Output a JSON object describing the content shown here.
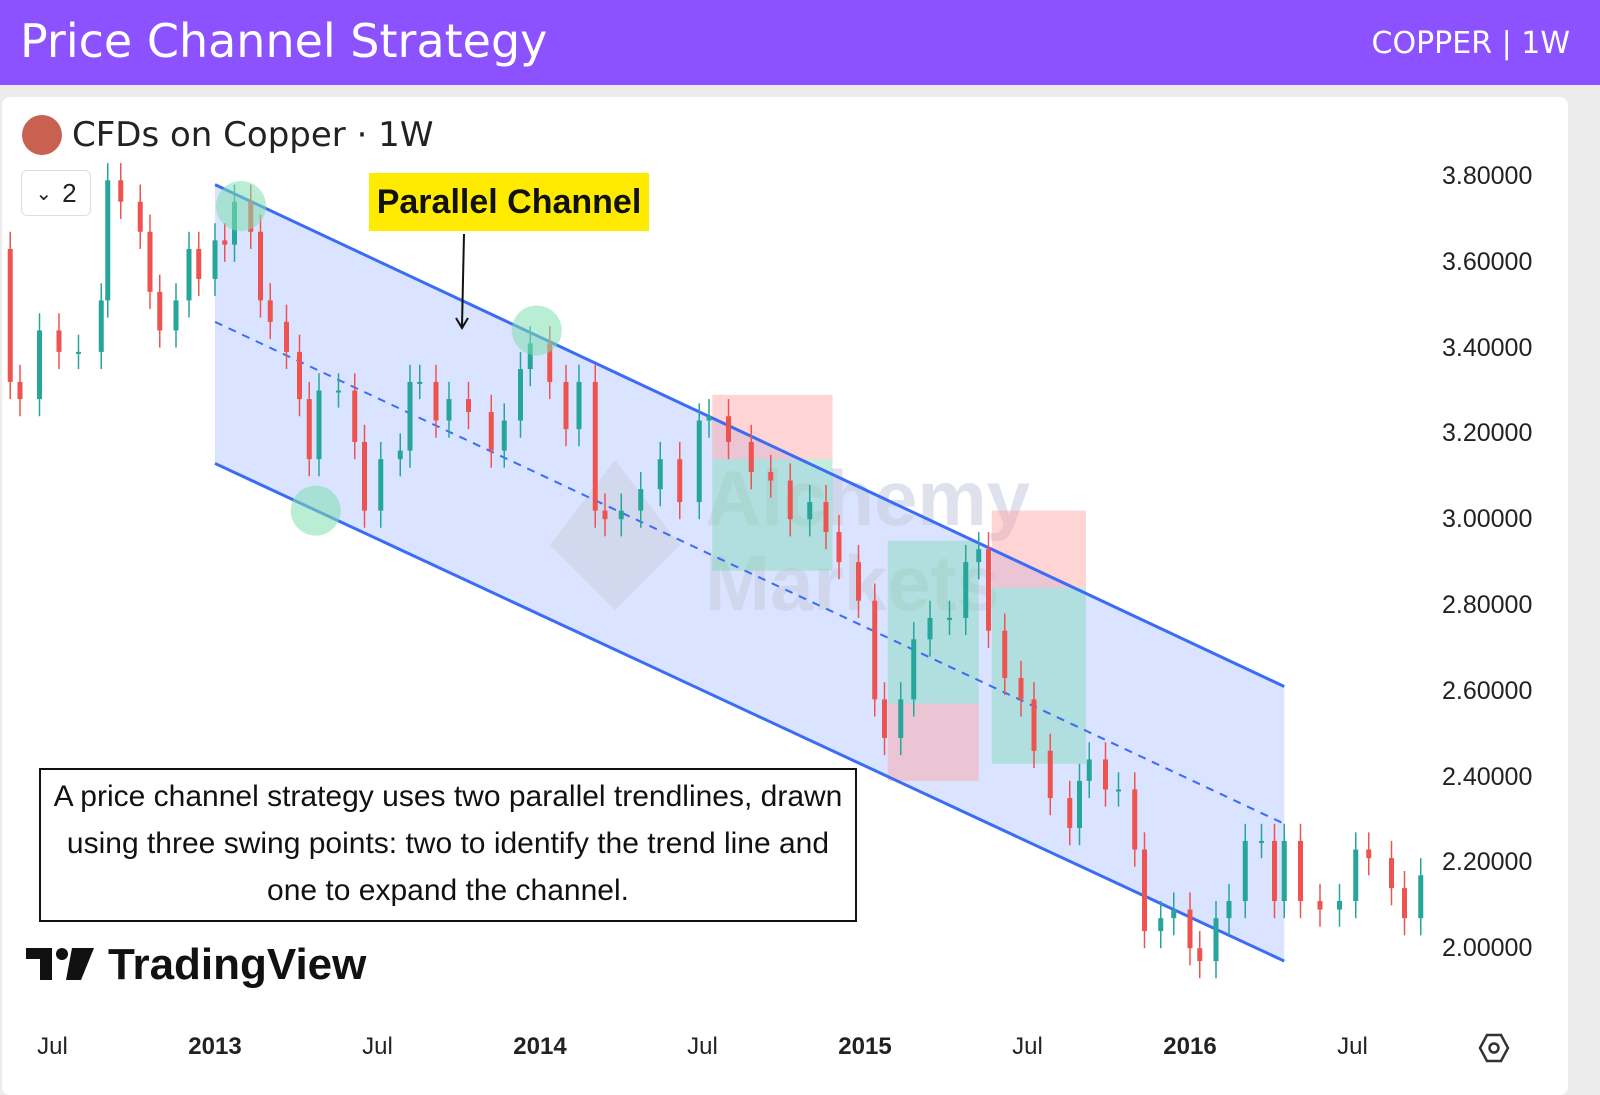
{
  "header": {
    "title": "Price Channel Strategy",
    "subtitle": "COPPER | 1W"
  },
  "symbol": {
    "label": "CFDs on Copper · 1W",
    "collapse_count": "2",
    "icon": "copper-cfd-icon"
  },
  "annotation_label": "Parallel Channel",
  "note": "A price channel strategy uses two parallel trendlines, drawn using three swing points: two to identify the trend line and one to expand the channel.",
  "logo": "TradingView",
  "watermark": "Alchemy Markets",
  "settings_icon": "settings-hexagon-icon",
  "colors": {
    "header": "#8c52ff",
    "up": "#26a69a",
    "down": "#ef5350",
    "channel": "#3b6cf5",
    "channel_fill": "#d6e0ff",
    "label": "#ffeb00"
  },
  "chart_data": {
    "type": "candlestick",
    "title": "",
    "y_ticks": [
      "3.80000",
      "3.60000",
      "3.40000",
      "3.20000",
      "3.00000",
      "2.80000",
      "2.60000",
      "2.40000",
      "2.20000",
      "2.00000"
    ],
    "x_ticks": [
      {
        "label": "Jul",
        "x": 2012.5,
        "bold": false
      },
      {
        "label": "2013",
        "x": 2013.0,
        "bold": true
      },
      {
        "label": "Jul",
        "x": 2013.5,
        "bold": false
      },
      {
        "label": "2014",
        "x": 2014.0,
        "bold": true
      },
      {
        "label": "Jul",
        "x": 2014.5,
        "bold": false
      },
      {
        "label": "2015",
        "x": 2015.0,
        "bold": true
      },
      {
        "label": "Jul",
        "x": 2015.5,
        "bold": false
      },
      {
        "label": "2016",
        "x": 2016.0,
        "bold": true
      },
      {
        "label": "Jul",
        "x": 2016.5,
        "bold": false
      }
    ],
    "ylim": [
      1.92,
      3.83
    ],
    "xlim": [
      2012.34,
      2016.95
    ],
    "closes": [
      [
        2012.34,
        3.63
      ],
      [
        2012.37,
        3.32
      ],
      [
        2012.4,
        3.28
      ],
      [
        2012.46,
        3.44
      ],
      [
        2012.52,
        3.39
      ],
      [
        2012.58,
        3.39
      ],
      [
        2012.65,
        3.51
      ],
      [
        2012.67,
        3.79
      ],
      [
        2012.71,
        3.74
      ],
      [
        2012.77,
        3.67
      ],
      [
        2012.8,
        3.53
      ],
      [
        2012.83,
        3.44
      ],
      [
        2012.88,
        3.51
      ],
      [
        2012.92,
        3.63
      ],
      [
        2012.95,
        3.56
      ],
      [
        2013.0,
        3.65
      ],
      [
        2013.03,
        3.64
      ],
      [
        2013.06,
        3.74
      ],
      [
        2013.11,
        3.67
      ],
      [
        2013.14,
        3.51
      ],
      [
        2013.17,
        3.46
      ],
      [
        2013.22,
        3.39
      ],
      [
        2013.26,
        3.28
      ],
      [
        2013.29,
        3.14
      ],
      [
        2013.32,
        3.3
      ],
      [
        2013.38,
        3.3
      ],
      [
        2013.43,
        3.18
      ],
      [
        2013.46,
        3.02
      ],
      [
        2013.51,
        3.14
      ],
      [
        2013.57,
        3.16
      ],
      [
        2013.6,
        3.32
      ],
      [
        2013.63,
        3.32
      ],
      [
        2013.68,
        3.23
      ],
      [
        2013.72,
        3.28
      ],
      [
        2013.78,
        3.25
      ],
      [
        2013.85,
        3.16
      ],
      [
        2013.89,
        3.23
      ],
      [
        2013.94,
        3.35
      ],
      [
        2013.97,
        3.41
      ],
      [
        2014.03,
        3.32
      ],
      [
        2014.08,
        3.21
      ],
      [
        2014.12,
        3.32
      ],
      [
        2014.17,
        3.02
      ],
      [
        2014.2,
        3.0
      ],
      [
        2014.25,
        3.02
      ],
      [
        2014.31,
        3.07
      ],
      [
        2014.37,
        3.14
      ],
      [
        2014.43,
        3.04
      ],
      [
        2014.49,
        3.23
      ],
      [
        2014.52,
        3.24
      ],
      [
        2014.58,
        3.18
      ],
      [
        2014.65,
        3.11
      ],
      [
        2014.71,
        3.09
      ],
      [
        2014.77,
        3.0
      ],
      [
        2014.83,
        3.04
      ],
      [
        2014.88,
        2.97
      ],
      [
        2014.92,
        2.9
      ],
      [
        2014.98,
        2.81
      ],
      [
        2015.03,
        2.58
      ],
      [
        2015.06,
        2.49
      ],
      [
        2015.11,
        2.58
      ],
      [
        2015.15,
        2.72
      ],
      [
        2015.2,
        2.77
      ],
      [
        2015.26,
        2.77
      ],
      [
        2015.31,
        2.9
      ],
      [
        2015.35,
        2.93
      ],
      [
        2015.38,
        2.74
      ],
      [
        2015.43,
        2.63
      ],
      [
        2015.48,
        2.58
      ],
      [
        2015.52,
        2.46
      ],
      [
        2015.57,
        2.35
      ],
      [
        2015.63,
        2.28
      ],
      [
        2015.66,
        2.39
      ],
      [
        2015.69,
        2.44
      ],
      [
        2015.74,
        2.37
      ],
      [
        2015.78,
        2.37
      ],
      [
        2015.83,
        2.23
      ],
      [
        2015.86,
        2.04
      ],
      [
        2015.91,
        2.07
      ],
      [
        2015.95,
        2.09
      ],
      [
        2016.0,
        2.0
      ],
      [
        2016.03,
        1.97
      ],
      [
        2016.08,
        2.07
      ],
      [
        2016.12,
        2.11
      ],
      [
        2016.17,
        2.25
      ],
      [
        2016.22,
        2.25
      ],
      [
        2016.26,
        2.11
      ],
      [
        2016.29,
        2.25
      ],
      [
        2016.34,
        2.11
      ],
      [
        2016.4,
        2.09
      ],
      [
        2016.46,
        2.11
      ],
      [
        2016.51,
        2.23
      ],
      [
        2016.55,
        2.21
      ],
      [
        2016.62,
        2.14
      ],
      [
        2016.66,
        2.07
      ],
      [
        2016.71,
        2.17
      ]
    ],
    "channel": {
      "upper": [
        [
          2013.0,
          3.78
        ],
        [
          2016.29,
          2.61
        ]
      ],
      "lower": [
        [
          2013.0,
          3.13
        ],
        [
          2016.29,
          1.97
        ]
      ],
      "middle": [
        [
          2013.0,
          3.46
        ],
        [
          2016.29,
          2.29
        ]
      ]
    },
    "swing_points": [
      [
        2013.08,
        3.73
      ],
      [
        2013.99,
        3.44
      ],
      [
        2013.31,
        3.02
      ]
    ],
    "zones": [
      {
        "x": [
          2014.53,
          2014.9
        ],
        "red": [
          3.14,
          3.29
        ],
        "green": [
          2.88,
          3.14
        ]
      },
      {
        "x": [
          2015.07,
          2015.35
        ],
        "green": [
          2.57,
          2.95
        ],
        "red": [
          2.39,
          2.57
        ]
      },
      {
        "x": [
          2015.39,
          2015.68
        ],
        "red": [
          2.84,
          3.02
        ],
        "green": [
          2.43,
          2.84
        ]
      }
    ]
  }
}
